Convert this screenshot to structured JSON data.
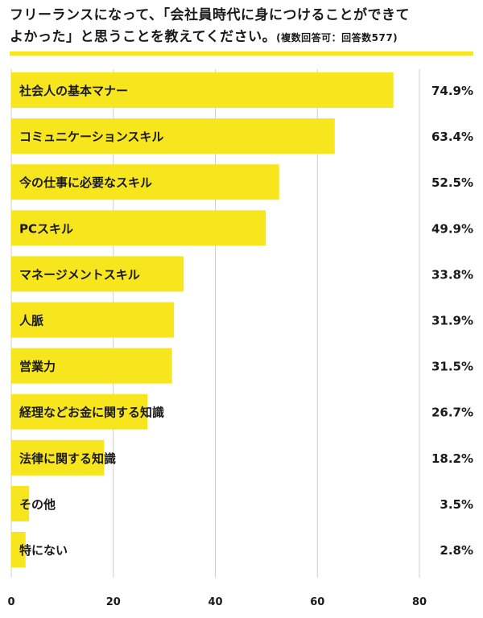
{
  "title": {
    "line1": "フリーランスになって、「会社員時代に身につけることができて",
    "line2": "よかった」と思うことを教えてください。",
    "note": "(複数回答可：回答数577)"
  },
  "colors": {
    "bar": "#f7e51d",
    "accent_rule": "#f7e51d",
    "grid": "#cfcfcf",
    "text": "#1a1a1a"
  },
  "chart_data": {
    "type": "bar",
    "orientation": "horizontal",
    "categories": [
      "社会人の基本マナー",
      "コミュニケーションスキル",
      "今の仕事に必要なスキル",
      "PCスキル",
      "マネージメントスキル",
      "人脈",
      "営業力",
      "経理などお金に関する知識",
      "法律に関する知識",
      "その他",
      "特にない"
    ],
    "values": [
      74.9,
      63.4,
      52.5,
      49.9,
      33.8,
      31.9,
      31.5,
      26.7,
      18.2,
      3.5,
      2.8
    ],
    "value_labels": [
      "74.9%",
      "63.4%",
      "52.5%",
      "49.9%",
      "33.8%",
      "31.9%",
      "31.5%",
      "26.7%",
      "18.2%",
      "3.5%",
      "2.8%"
    ],
    "xlim": [
      0,
      80
    ],
    "xticks": [
      "0",
      "20",
      "40",
      "60",
      "80"
    ],
    "grid": true
  }
}
